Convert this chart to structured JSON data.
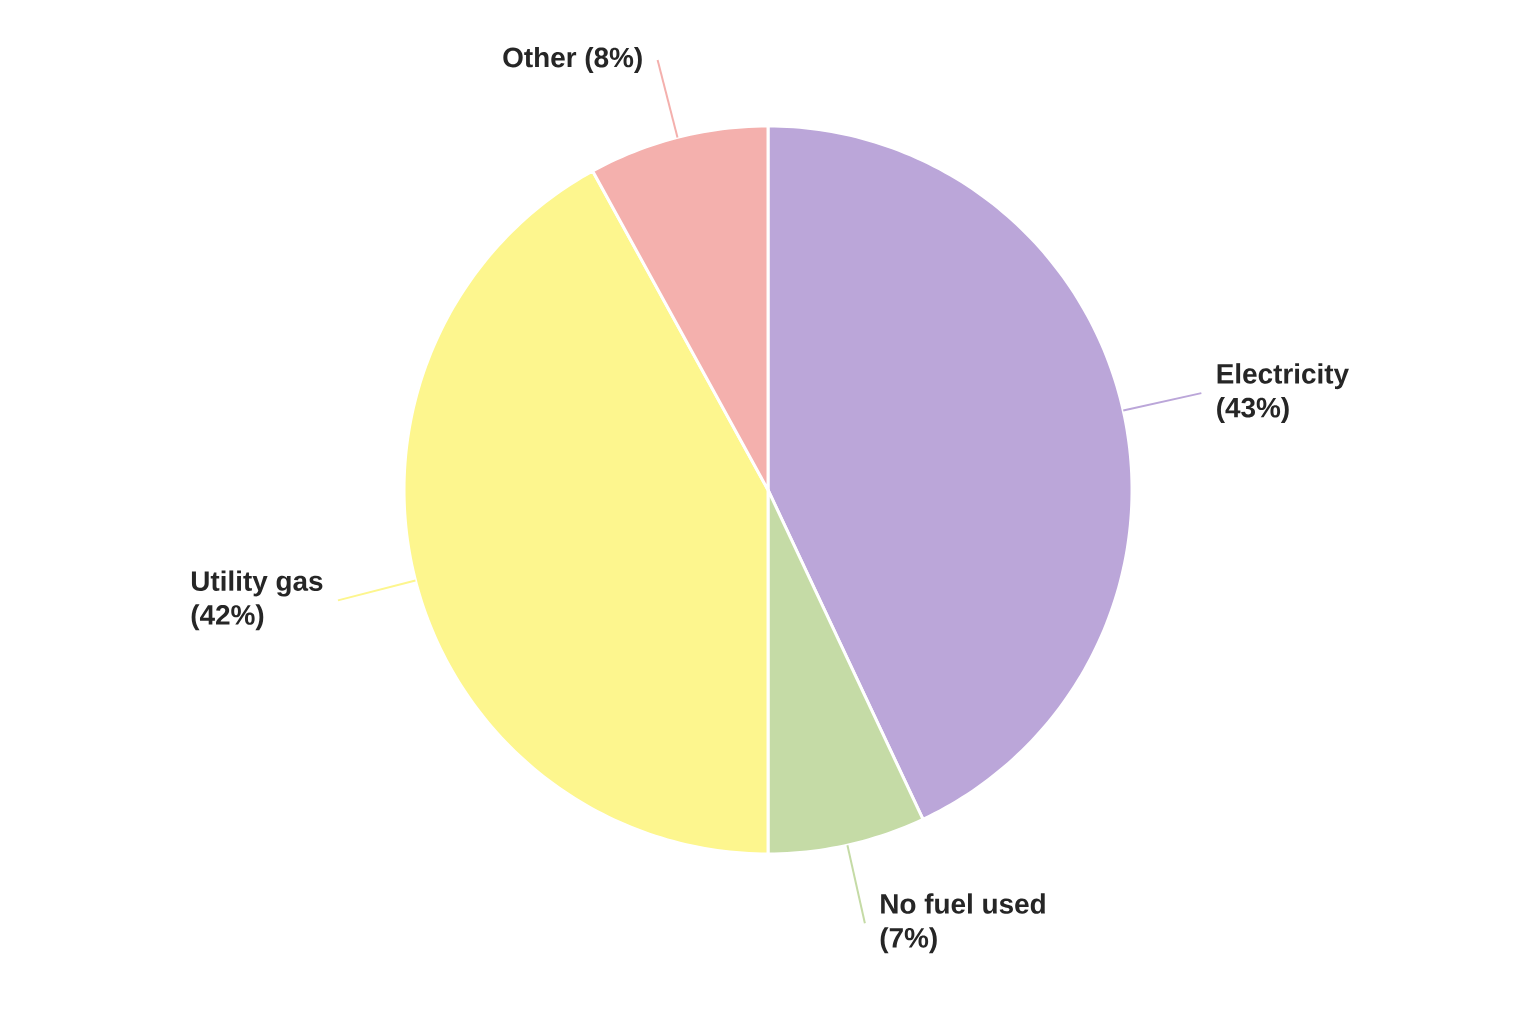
{
  "chart_data": {
    "type": "pie",
    "categories": [
      "Electricity",
      "No fuel used",
      "Utility gas",
      "Other"
    ],
    "values": [
      43,
      7,
      42,
      8
    ],
    "value_labels": [
      "(43%)",
      "(7%)",
      "(42%)",
      "(8%)"
    ],
    "colors": [
      "#bba6d9",
      "#c5dba6",
      "#fdf68e",
      "#f4b0ad"
    ]
  }
}
